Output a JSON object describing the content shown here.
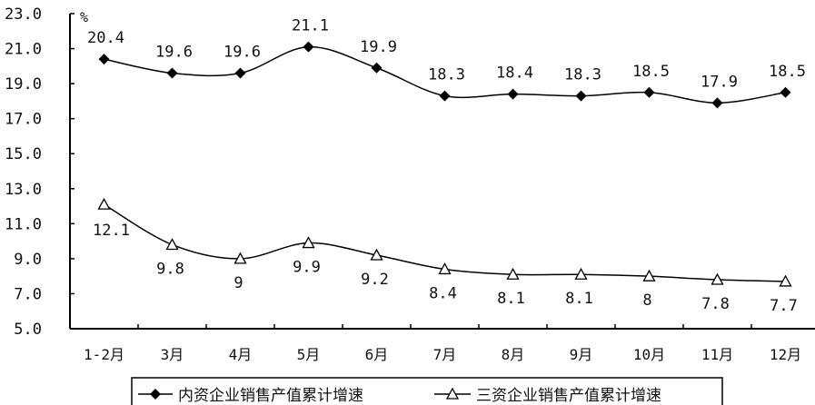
{
  "chart_data": {
    "type": "line",
    "title": "",
    "xlabel": "",
    "ylabel": "%",
    "ylim": [
      5.0,
      23.0
    ],
    "yticks": [
      "5.0",
      "7.0",
      "9.0",
      "11.0",
      "13.0",
      "15.0",
      "17.0",
      "19.0",
      "21.0",
      "23.0"
    ],
    "grid": false,
    "legend_position": "bottom",
    "categories": [
      "1-2月",
      "3月",
      "4月",
      "5月",
      "6月",
      "7月",
      "8月",
      "9月",
      "10月",
      "11月",
      "12月"
    ],
    "series": [
      {
        "name": "内资企业销售产值累计增速",
        "marker": "filled-diamond",
        "color": "#000000",
        "values": [
          20.4,
          19.6,
          19.6,
          21.1,
          19.9,
          18.3,
          18.4,
          18.3,
          18.5,
          17.9,
          18.5
        ]
      },
      {
        "name": "三资企业销售产值累计增速",
        "marker": "open-triangle",
        "color": "#000000",
        "values": [
          12.1,
          9.8,
          9.0,
          9.9,
          9.2,
          8.4,
          8.1,
          8.1,
          8.0,
          7.8,
          7.7
        ]
      }
    ]
  }
}
